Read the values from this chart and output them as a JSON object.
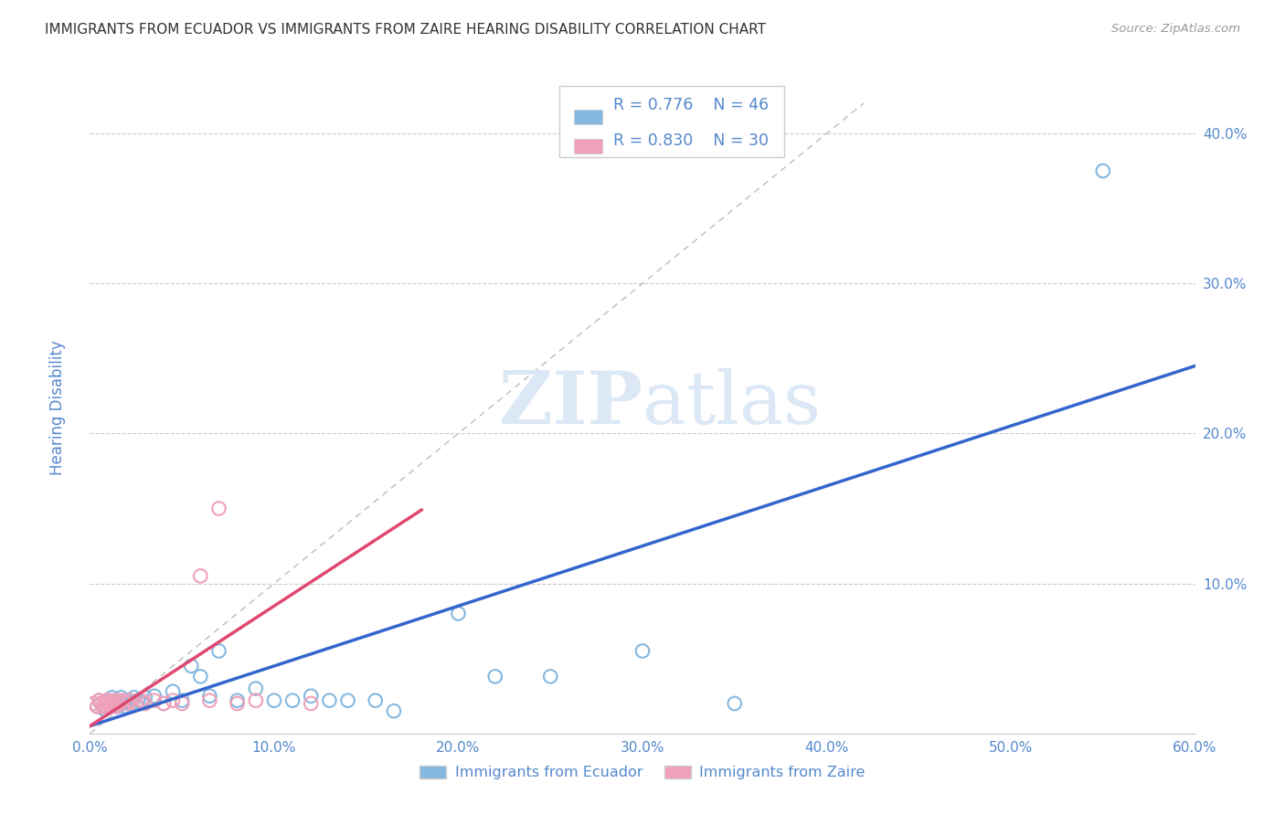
{
  "title": "IMMIGRANTS FROM ECUADOR VS IMMIGRANTS FROM ZAIRE HEARING DISABILITY CORRELATION CHART",
  "source": "Source: ZipAtlas.com",
  "ylabel": "Hearing Disability",
  "xlim": [
    0.0,
    0.6
  ],
  "ylim": [
    0.0,
    0.44
  ],
  "xticks": [
    0.0,
    0.1,
    0.2,
    0.3,
    0.4,
    0.5,
    0.6
  ],
  "yticks": [
    0.0,
    0.1,
    0.2,
    0.3,
    0.4
  ],
  "xticklabels": [
    "0.0%",
    "10.0%",
    "20.0%",
    "30.0%",
    "40.0%",
    "50.0%",
    "60.0%"
  ],
  "yticklabels": [
    "",
    "10.0%",
    "20.0%",
    "30.0%",
    "40.0%"
  ],
  "ecuador_color": "#85B8E0",
  "zaire_color": "#F0A0B8",
  "ecuador_line_color": "#3366CC",
  "zaire_line_color": "#E04870",
  "diagonal_color": "#BBBBBB",
  "R_ecuador": 0.776,
  "N_ecuador": 46,
  "R_zaire": 0.83,
  "N_zaire": 30,
  "ecuador_scatter_x": [
    0.002,
    0.004,
    0.005,
    0.006,
    0.007,
    0.008,
    0.009,
    0.01,
    0.011,
    0.012,
    0.013,
    0.014,
    0.015,
    0.016,
    0.017,
    0.018,
    0.019,
    0.02,
    0.022,
    0.024,
    0.026,
    0.028,
    0.03,
    0.035,
    0.04,
    0.045,
    0.05,
    0.055,
    0.06,
    0.065,
    0.07,
    0.08,
    0.09,
    0.1,
    0.11,
    0.12,
    0.13,
    0.14,
    0.155,
    0.165,
    0.2,
    0.22,
    0.25,
    0.3,
    0.35,
    0.55
  ],
  "ecuador_scatter_y": [
    0.02,
    0.018,
    0.022,
    0.02,
    0.018,
    0.016,
    0.022,
    0.02,
    0.018,
    0.024,
    0.02,
    0.022,
    0.018,
    0.02,
    0.024,
    0.02,
    0.018,
    0.022,
    0.02,
    0.024,
    0.022,
    0.02,
    0.024,
    0.025,
    0.02,
    0.028,
    0.022,
    0.045,
    0.038,
    0.025,
    0.055,
    0.022,
    0.03,
    0.022,
    0.022,
    0.025,
    0.022,
    0.022,
    0.022,
    0.015,
    0.08,
    0.038,
    0.038,
    0.055,
    0.02,
    0.375
  ],
  "zaire_scatter_x": [
    0.002,
    0.004,
    0.005,
    0.006,
    0.007,
    0.008,
    0.009,
    0.01,
    0.011,
    0.012,
    0.013,
    0.014,
    0.015,
    0.016,
    0.018,
    0.02,
    0.022,
    0.025,
    0.028,
    0.03,
    0.035,
    0.04,
    0.045,
    0.05,
    0.06,
    0.065,
    0.07,
    0.08,
    0.09,
    0.12
  ],
  "zaire_scatter_y": [
    0.02,
    0.018,
    0.022,
    0.02,
    0.018,
    0.02,
    0.022,
    0.02,
    0.018,
    0.022,
    0.02,
    0.018,
    0.022,
    0.02,
    0.022,
    0.02,
    0.022,
    0.02,
    0.022,
    0.02,
    0.022,
    0.02,
    0.022,
    0.02,
    0.105,
    0.022,
    0.15,
    0.02,
    0.022,
    0.02
  ],
  "background_color": "#FFFFFF",
  "grid_color": "#CCCCCC",
  "title_color": "#333333",
  "axis_color": "#5588CC",
  "watermark_color": "#DCE8F5",
  "legend_border_color": "#CCCCCC",
  "bottom_legend_color": "#5588CC"
}
